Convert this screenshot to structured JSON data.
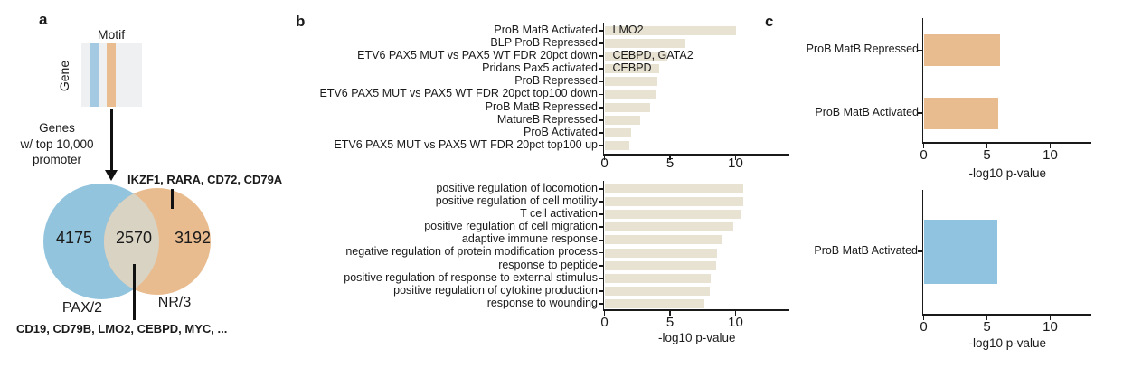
{
  "panel_letters": {
    "a": "a",
    "b": "b",
    "c": "c"
  },
  "panel_a": {
    "motif_label": "Motif",
    "gene_label": "Gene",
    "arrow_caption": "Genes\nw/ top 10,000\npromoter",
    "venn": {
      "left_count": "4175",
      "overlap_count": "2570",
      "right_count": "3192",
      "left_label": "PAX/2",
      "right_label": "NR/3",
      "top_gene_list": "IKZF1, RARA, CD72, CD79A",
      "bottom_gene_list": "CD19, CD79B, LMO2, CEBPD, MYC, ...",
      "colors": {
        "left": "#92c4de",
        "right": "#e9bc8f",
        "overlap": "#d9d3c4"
      }
    }
  },
  "chart_data": [
    {
      "id": "b_top",
      "type": "bar",
      "orientation": "horizontal",
      "title": "",
      "categories": [
        "ProB MatB Activated",
        "BLP ProB Repressed",
        "ETV6 PAX5 MUT vs PAX5 WT FDR 20pct down",
        "Pridans Pax5 activated",
        "ProB Repressed",
        "ETV6 PAX5 MUT vs PAX5 WT FDR 20pct top100 down",
        "ProB MatB Repressed",
        "MatureB Repressed",
        "ProB Activated",
        "ETV6 PAX5 MUT vs PAX5 WT FDR 20pct top100 up"
      ],
      "values": [
        10.0,
        6.2,
        4.8,
        4.2,
        4.0,
        3.9,
        3.5,
        2.7,
        2.0,
        1.9
      ],
      "annotations": [
        {
          "index": 0,
          "text": "LMO2"
        },
        {
          "index": 2,
          "text": "CEBPD, GATA2"
        },
        {
          "index": 3,
          "text": "CEBPD"
        }
      ],
      "xlabel": "",
      "xticks": [
        0,
        5,
        10
      ],
      "xlim": [
        0,
        14.1
      ],
      "grid": false,
      "bar_color": "#e8e2d3"
    },
    {
      "id": "b_bottom",
      "type": "bar",
      "orientation": "horizontal",
      "title": "",
      "categories": [
        "positive regulation of locomotion",
        "positive regulation of cell motility",
        "T cell activation",
        "positive regulation of cell migration",
        "adaptive immune response",
        "negative regulation of protein modification process",
        "response to peptide",
        "positive regulation of response to external stimulus",
        "positive regulation of cytokine production",
        "response to wounding"
      ],
      "values": [
        10.6,
        10.6,
        10.4,
        9.8,
        8.9,
        8.6,
        8.5,
        8.1,
        8.0,
        7.6
      ],
      "annotations": [],
      "xlabel": "-log10 p-value",
      "xticks": [
        0,
        5,
        10
      ],
      "xlim": [
        0,
        14.1
      ],
      "grid": false,
      "bar_color": "#e8e2d3"
    },
    {
      "id": "c_top",
      "type": "bar",
      "orientation": "horizontal",
      "title": "",
      "categories": [
        "ProB MatB Repressed",
        "ProB MatB Activated"
      ],
      "values": [
        6.0,
        5.9
      ],
      "annotations": [],
      "xlabel": "-log10 p-value",
      "xticks": [
        0,
        5,
        10
      ],
      "xlim": [
        0,
        13.2
      ],
      "grid": false,
      "bar_color": "#e9bc8f"
    },
    {
      "id": "c_bottom",
      "type": "bar",
      "orientation": "horizontal",
      "title": "",
      "categories": [
        "ProB MatB Activated"
      ],
      "values": [
        5.85
      ],
      "annotations": [],
      "xlabel": "-log10 p-value",
      "xticks": [
        0,
        5,
        10
      ],
      "xlim": [
        0,
        13.2
      ],
      "grid": false,
      "bar_color": "#8fc3df"
    }
  ]
}
